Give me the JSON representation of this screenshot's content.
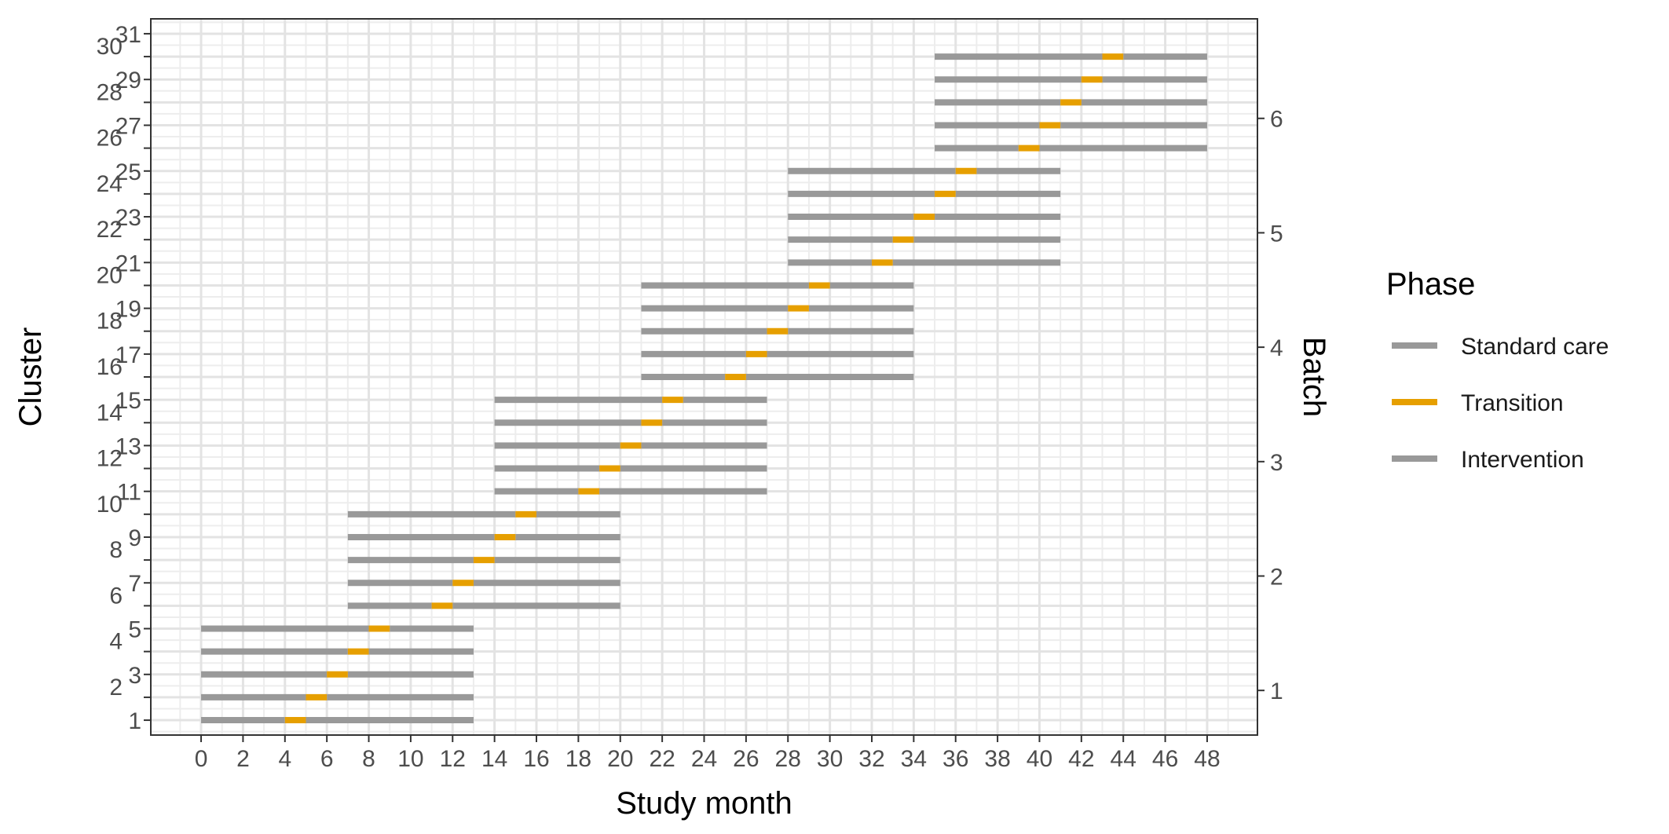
{
  "chart_data": {
    "type": "gantt",
    "xlabel": "Study month",
    "ylabel": "Cluster",
    "y2label": "Batch",
    "xlim": [
      -2.4,
      50.4
    ],
    "ylim": [
      0.35,
      31.65
    ],
    "x_ticks": [
      0,
      2,
      4,
      6,
      8,
      10,
      12,
      14,
      16,
      18,
      20,
      22,
      24,
      26,
      28,
      30,
      32,
      34,
      36,
      38,
      40,
      42,
      44,
      46,
      48
    ],
    "y_ticks": [
      1,
      2,
      3,
      4,
      5,
      6,
      7,
      8,
      9,
      10,
      11,
      12,
      13,
      14,
      15,
      16,
      17,
      18,
      19,
      20,
      21,
      22,
      23,
      24,
      25,
      26,
      27,
      28,
      29,
      30,
      31
    ],
    "y2_ticks": [
      {
        "label": "1",
        "at": 2.3
      },
      {
        "label": "2",
        "at": 7.3
      },
      {
        "label": "3",
        "at": 12.3
      },
      {
        "label": "4",
        "at": 17.3
      },
      {
        "label": "5",
        "at": 22.3
      },
      {
        "label": "6",
        "at": 27.3
      }
    ],
    "grid": true,
    "legend": {
      "title": "Phase",
      "position": "right",
      "entries": [
        {
          "label": "Standard care",
          "color": "#999999"
        },
        {
          "label": "Transition",
          "color": "#E69F00"
        },
        {
          "label": "Intervention",
          "color": "#999999"
        }
      ]
    },
    "clusters": [
      {
        "cluster": 1,
        "batch": 1,
        "start": 0,
        "transition_start": 4,
        "transition_end": 5,
        "end": 13
      },
      {
        "cluster": 2,
        "batch": 1,
        "start": 0,
        "transition_start": 5,
        "transition_end": 6,
        "end": 13
      },
      {
        "cluster": 3,
        "batch": 1,
        "start": 0,
        "transition_start": 6,
        "transition_end": 7,
        "end": 13
      },
      {
        "cluster": 4,
        "batch": 1,
        "start": 0,
        "transition_start": 7,
        "transition_end": 8,
        "end": 13
      },
      {
        "cluster": 5,
        "batch": 1,
        "start": 0,
        "transition_start": 8,
        "transition_end": 9,
        "end": 13
      },
      {
        "cluster": 6,
        "batch": 2,
        "start": 7,
        "transition_start": 11,
        "transition_end": 12,
        "end": 20
      },
      {
        "cluster": 7,
        "batch": 2,
        "start": 7,
        "transition_start": 12,
        "transition_end": 13,
        "end": 20
      },
      {
        "cluster": 8,
        "batch": 2,
        "start": 7,
        "transition_start": 13,
        "transition_end": 14,
        "end": 20
      },
      {
        "cluster": 9,
        "batch": 2,
        "start": 7,
        "transition_start": 14,
        "transition_end": 15,
        "end": 20
      },
      {
        "cluster": 10,
        "batch": 2,
        "start": 7,
        "transition_start": 15,
        "transition_end": 16,
        "end": 20
      },
      {
        "cluster": 11,
        "batch": 3,
        "start": 14,
        "transition_start": 18,
        "transition_end": 19,
        "end": 27
      },
      {
        "cluster": 12,
        "batch": 3,
        "start": 14,
        "transition_start": 19,
        "transition_end": 20,
        "end": 27
      },
      {
        "cluster": 13,
        "batch": 3,
        "start": 14,
        "transition_start": 20,
        "transition_end": 21,
        "end": 27
      },
      {
        "cluster": 14,
        "batch": 3,
        "start": 14,
        "transition_start": 21,
        "transition_end": 22,
        "end": 27
      },
      {
        "cluster": 15,
        "batch": 3,
        "start": 14,
        "transition_start": 22,
        "transition_end": 23,
        "end": 27
      },
      {
        "cluster": 16,
        "batch": 4,
        "start": 21,
        "transition_start": 25,
        "transition_end": 26,
        "end": 34
      },
      {
        "cluster": 17,
        "batch": 4,
        "start": 21,
        "transition_start": 26,
        "transition_end": 27,
        "end": 34
      },
      {
        "cluster": 18,
        "batch": 4,
        "start": 21,
        "transition_start": 27,
        "transition_end": 28,
        "end": 34
      },
      {
        "cluster": 19,
        "batch": 4,
        "start": 21,
        "transition_start": 28,
        "transition_end": 29,
        "end": 34
      },
      {
        "cluster": 20,
        "batch": 4,
        "start": 21,
        "transition_start": 29,
        "transition_end": 30,
        "end": 34
      },
      {
        "cluster": 21,
        "batch": 5,
        "start": 28,
        "transition_start": 32,
        "transition_end": 33,
        "end": 41
      },
      {
        "cluster": 22,
        "batch": 5,
        "start": 28,
        "transition_start": 33,
        "transition_end": 34,
        "end": 41
      },
      {
        "cluster": 23,
        "batch": 5,
        "start": 28,
        "transition_start": 34,
        "transition_end": 35,
        "end": 41
      },
      {
        "cluster": 24,
        "batch": 5,
        "start": 28,
        "transition_start": 35,
        "transition_end": 36,
        "end": 41
      },
      {
        "cluster": 25,
        "batch": 5,
        "start": 28,
        "transition_start": 36,
        "transition_end": 37,
        "end": 41
      },
      {
        "cluster": 26,
        "batch": 6,
        "start": 35,
        "transition_start": 39,
        "transition_end": 40,
        "end": 48
      },
      {
        "cluster": 27,
        "batch": 6,
        "start": 35,
        "transition_start": 40,
        "transition_end": 41,
        "end": 48
      },
      {
        "cluster": 28,
        "batch": 6,
        "start": 35,
        "transition_start": 41,
        "transition_end": 42,
        "end": 48
      },
      {
        "cluster": 29,
        "batch": 6,
        "start": 35,
        "transition_start": 42,
        "transition_end": 43,
        "end": 48
      },
      {
        "cluster": 30,
        "batch": 6,
        "start": 35,
        "transition_start": 43,
        "transition_end": 44,
        "end": 48
      }
    ]
  }
}
